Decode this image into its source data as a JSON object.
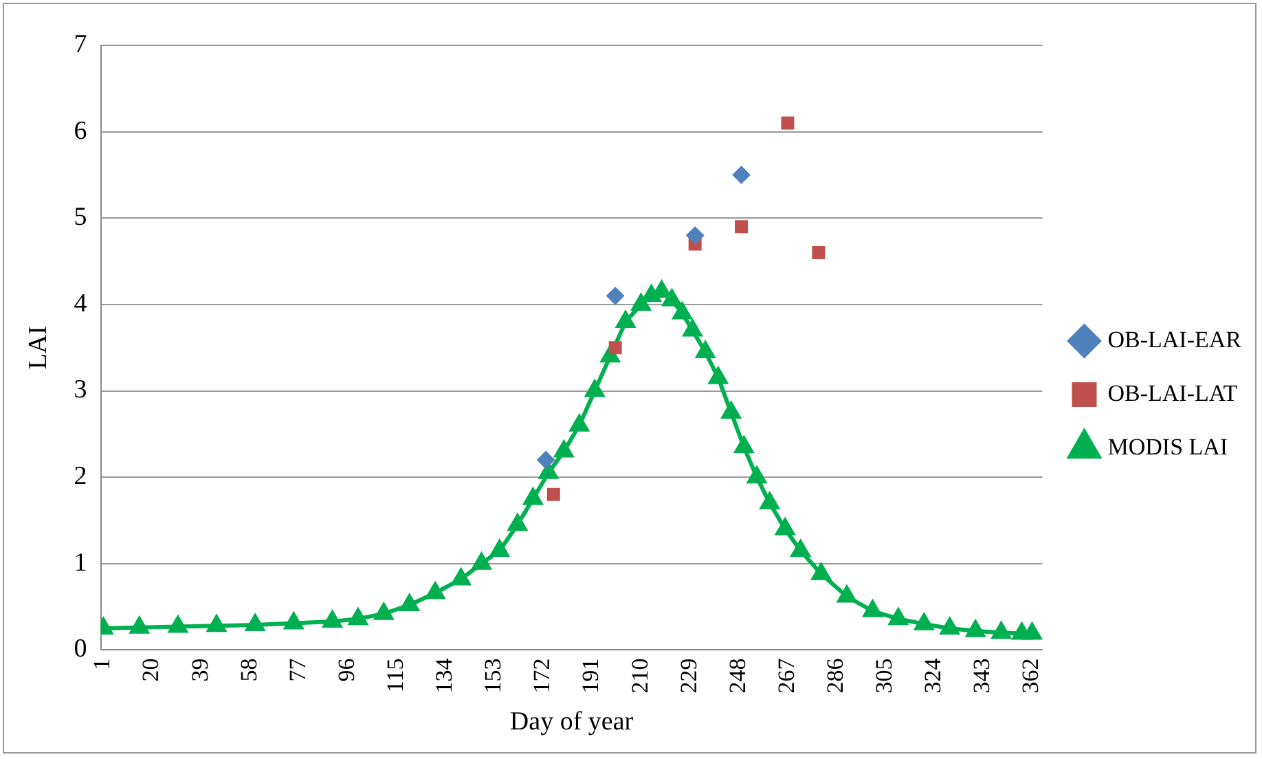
{
  "chart_data": {
    "type": "line",
    "xlabel": "Day of year",
    "ylabel": "LAI",
    "xlim": [
      0,
      366
    ],
    "xticks": [
      1,
      20,
      39,
      58,
      77,
      96,
      115,
      134,
      153,
      172,
      191,
      210,
      229,
      248,
      267,
      286,
      305,
      324,
      343,
      362
    ],
    "ylim": [
      0,
      7
    ],
    "yticks": [
      0,
      1,
      2,
      3,
      4,
      5,
      6,
      7
    ],
    "grid": "y",
    "legend": "right",
    "series": [
      {
        "name": "OB-LAI-EAR",
        "type": "scatter",
        "marker": "diamond",
        "color": "#4f81bd",
        "x": [
          173,
          200,
          231,
          249
        ],
        "values": [
          2.2,
          4.1,
          4.8,
          5.5
        ]
      },
      {
        "name": "OB-LAI-LAT",
        "type": "scatter",
        "marker": "square",
        "color": "#c0504d",
        "x": [
          176,
          200,
          231,
          249,
          267,
          279
        ],
        "values": [
          1.8,
          3.5,
          4.7,
          4.9,
          6.1,
          4.6
        ]
      },
      {
        "name": "MODIS LAI",
        "type": "line",
        "marker": "triangle",
        "color": "#00b050",
        "x": [
          1,
          15,
          30,
          45,
          60,
          75,
          90,
          100,
          110,
          120,
          130,
          140,
          148,
          155,
          162,
          168,
          174,
          180,
          186,
          192,
          198,
          204,
          210,
          214,
          218,
          222,
          226,
          230,
          235,
          240,
          245,
          250,
          255,
          260,
          266,
          272,
          280,
          290,
          300,
          310,
          320,
          330,
          340,
          350,
          358,
          362
        ],
        "values": [
          0.25,
          0.26,
          0.27,
          0.28,
          0.29,
          0.31,
          0.33,
          0.36,
          0.42,
          0.52,
          0.66,
          0.82,
          1.0,
          1.15,
          1.45,
          1.75,
          2.05,
          2.3,
          2.6,
          3.0,
          3.4,
          3.8,
          4.0,
          4.1,
          4.15,
          4.05,
          3.9,
          3.7,
          3.45,
          3.15,
          2.75,
          2.35,
          2.0,
          1.7,
          1.4,
          1.15,
          0.88,
          0.62,
          0.45,
          0.36,
          0.3,
          0.25,
          0.22,
          0.2,
          0.19,
          0.19
        ]
      }
    ]
  }
}
